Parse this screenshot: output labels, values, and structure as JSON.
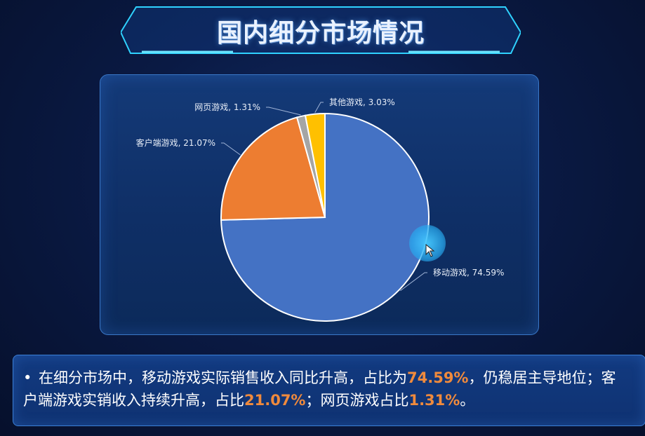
{
  "header": {
    "title": "国内细分市场情况"
  },
  "chart_data": {
    "type": "pie",
    "start_angle_deg": 0,
    "slices": [
      {
        "name": "移动游戏",
        "value": 74.59,
        "label": "移动游戏, 74.59%",
        "color": "#4472c4"
      },
      {
        "name": "客户端游戏",
        "value": 21.07,
        "label": "客户端游戏, 21.07%",
        "color": "#ed7d31"
      },
      {
        "name": "网页游戏",
        "value": 1.31,
        "label": "网页游戏, 1.31%",
        "color": "#a5a5a5"
      },
      {
        "name": "其他游戏",
        "value": 3.03,
        "label": "其他游戏, 3.03%",
        "color": "#ffc000"
      }
    ]
  },
  "note": {
    "part1": "在细分市场中，移动游戏实际销售收入同比升高，占比为",
    "hl1": "74.59%",
    "part2": "，仍稳居主导地位；客户端游戏实销收入持续升高，占比",
    "hl2": "21.07%",
    "part3": "；网页游戏占比",
    "hl3": "1.31%",
    "part4": "。"
  },
  "colors": {
    "highlight": "#f08a3c",
    "accent": "#2fd2ff"
  }
}
